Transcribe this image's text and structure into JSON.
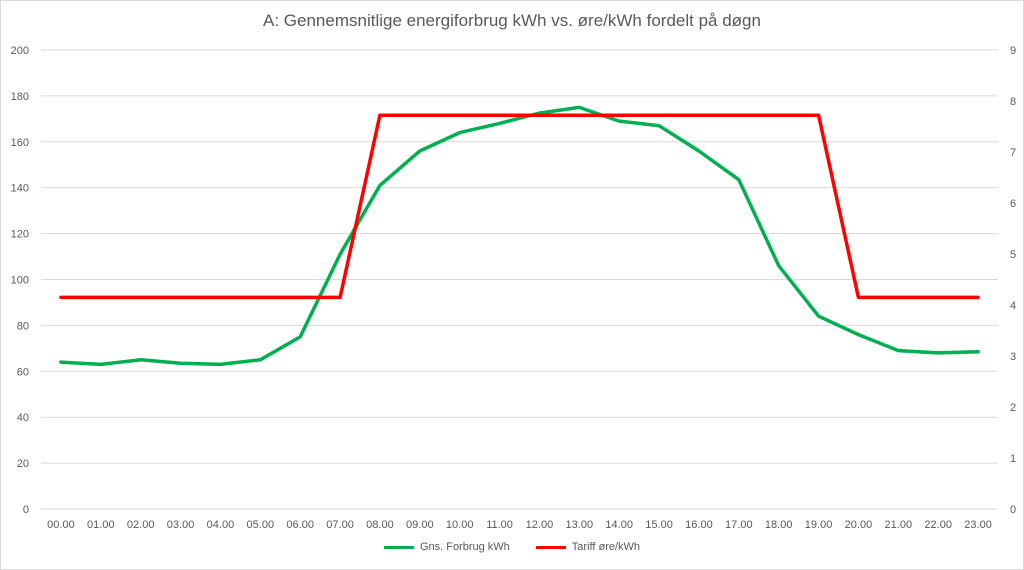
{
  "chart_data": {
    "type": "line",
    "title": "A: Gennemsnitlige energiforbrug kWh vs. øre/kWh fordelt på døgn",
    "categories": [
      "00.00",
      "01.00",
      "02.00",
      "03.00",
      "04.00",
      "05.00",
      "06.00",
      "07.00",
      "08.00",
      "09.00",
      "10.00",
      "11.00",
      "12.00",
      "13.00",
      "14.00",
      "15.00",
      "16.00",
      "17.00",
      "18.00",
      "19.00",
      "20.00",
      "21.00",
      "22.00",
      "23.00"
    ],
    "y_left": {
      "min": 0,
      "max": 200,
      "step": 20,
      "ticks": [
        "0",
        "20",
        "40",
        "60",
        "80",
        "100",
        "120",
        "140",
        "160",
        "180",
        "200"
      ]
    },
    "y_right": {
      "min": 0,
      "max": 9,
      "step": 1,
      "ticks": [
        "0",
        "1",
        "2",
        "3",
        "4",
        "5",
        "6",
        "7",
        "8",
        "9"
      ]
    },
    "grid": true,
    "legend_position": "bottom",
    "series": [
      {
        "name": "Gns. Forbrug kWh",
        "axis": "left",
        "color": "#00b050",
        "values": [
          64,
          63,
          65,
          63.5,
          63,
          65,
          75,
          111,
          141,
          156,
          164,
          168,
          172.5,
          175,
          169,
          167,
          156,
          143.5,
          106,
          84,
          76,
          69,
          68,
          68.5
        ]
      },
      {
        "name": "Tariff øre/kWh",
        "axis": "right",
        "color": "#ff0000",
        "values": [
          4.15,
          4.15,
          4.15,
          4.15,
          4.15,
          4.15,
          4.15,
          4.15,
          7.72,
          7.72,
          7.72,
          7.72,
          7.72,
          7.72,
          7.72,
          7.72,
          7.72,
          7.72,
          7.72,
          7.72,
          4.15,
          4.15,
          4.15,
          4.15
        ]
      }
    ]
  }
}
